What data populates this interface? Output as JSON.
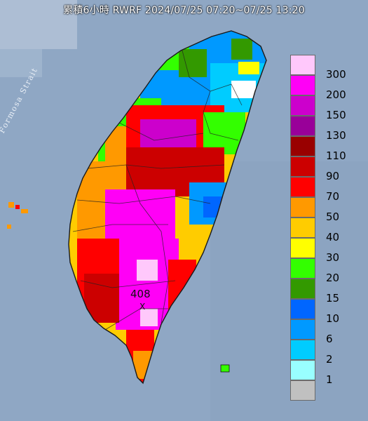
{
  "title": "累積6小時 RWRF 2024/07/25 07:20~07/25 13:20",
  "strait_label": "Formosa Strait",
  "max_value_label": "408",
  "max_marker": "X",
  "legend": {
    "items": [
      {
        "label": "300",
        "color": "#ffc8fb"
      },
      {
        "label": "200",
        "color": "#ff00f6"
      },
      {
        "label": "150",
        "color": "#cc00cc"
      },
      {
        "label": "130",
        "color": "#990099"
      },
      {
        "label": "110",
        "color": "#990000"
      },
      {
        "label": "90",
        "color": "#cc0000"
      },
      {
        "label": "70",
        "color": "#ff0000"
      },
      {
        "label": "50",
        "color": "#ff9900"
      },
      {
        "label": "40",
        "color": "#ffcc00"
      },
      {
        "label": "30",
        "color": "#ffff00"
      },
      {
        "label": "20",
        "color": "#33ff00"
      },
      {
        "label": "15",
        "color": "#339900"
      },
      {
        "label": "10",
        "color": "#0066ff"
      },
      {
        "label": "6",
        "color": "#0099ff"
      },
      {
        "label": "2",
        "color": "#00ccff"
      },
      {
        "label": "1",
        "color": "#99ffff"
      },
      {
        "label": "",
        "color": "#c0c0c0"
      }
    ]
  },
  "colors": {
    "sea": "#8fa7c4",
    "outline": "#1a1a1a"
  }
}
